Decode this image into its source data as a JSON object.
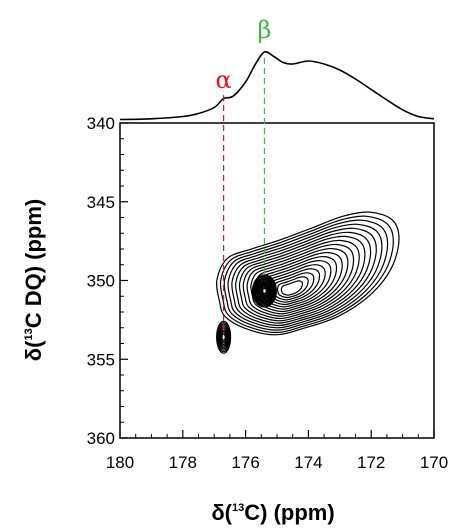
{
  "chart_data": {
    "type": "contour",
    "xlabel": {
      "prefix": "δ(",
      "sup": "13",
      "suffix": "C) (ppm)"
    },
    "ylabel": {
      "prefix": "δ(",
      "sup": "13",
      "suffix": "C DQ) (ppm)"
    },
    "xlim": [
      180,
      170
    ],
    "ylim": [
      360,
      340
    ],
    "x_reversed": true,
    "y_reversed": true,
    "x_ticks": [
      180,
      178,
      176,
      174,
      172,
      170
    ],
    "x_tick_labels": [
      "180",
      "178",
      "176",
      "174",
      "172",
      "170"
    ],
    "y_ticks": [
      340,
      345,
      350,
      355,
      360
    ],
    "y_tick_labels": [
      "340",
      "345",
      "350",
      "355",
      "360"
    ],
    "grid": false,
    "annotations": [
      {
        "label": "α",
        "x": 176.7,
        "color": "#e8101e"
      },
      {
        "label": "β",
        "x": 175.4,
        "color": "#3dba3d"
      }
    ],
    "peaks": [
      {
        "name": "alpha",
        "x": 176.7,
        "y": 353.6
      },
      {
        "name": "beta",
        "x": 175.4,
        "y": 350.6
      },
      {
        "name": "broad",
        "x": 173.0,
        "y": 348.0
      }
    ],
    "projection_1d": {
      "x": [
        180.0,
        179.0,
        178.0,
        177.5,
        177.0,
        176.7,
        176.4,
        176.0,
        175.7,
        175.4,
        175.1,
        174.8,
        174.5,
        174.0,
        173.5,
        173.0,
        172.5,
        172.0,
        171.5,
        171.0,
        170.5,
        170.0
      ],
      "y": [
        0.02,
        0.03,
        0.06,
        0.1,
        0.18,
        0.3,
        0.33,
        0.52,
        0.75,
        0.92,
        0.86,
        0.78,
        0.76,
        0.8,
        0.76,
        0.68,
        0.56,
        0.42,
        0.28,
        0.15,
        0.06,
        0.03
      ]
    }
  }
}
